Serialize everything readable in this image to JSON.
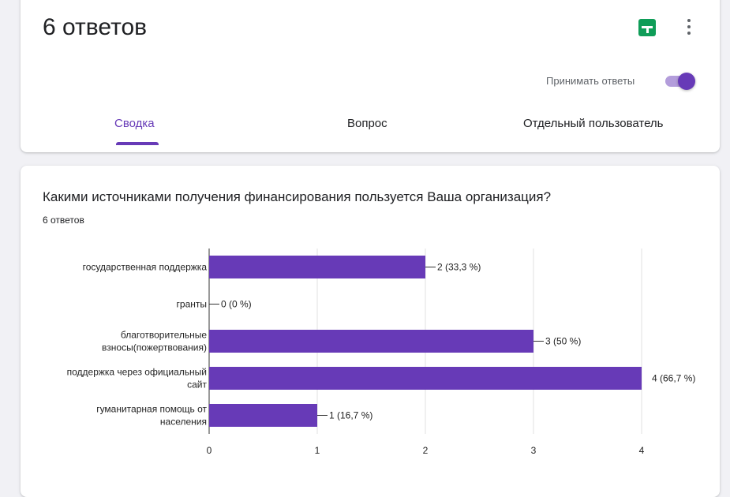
{
  "header": {
    "title": "6 ответов",
    "accept_label": "Принимать ответы",
    "accepting": true,
    "tabs": [
      {
        "label": "Сводка",
        "active": true
      },
      {
        "label": "Вопрос",
        "active": false
      },
      {
        "label": "Отдельный пользователь",
        "active": false
      }
    ]
  },
  "question": {
    "title": "Какими источниками получения финансирования пользуется Ваша организация?",
    "answer_count": "6 ответов"
  },
  "colors": {
    "accent": "#673ab7",
    "bar": "#673ab7",
    "sheets": "#0f9d58"
  },
  "chart_data": {
    "type": "bar",
    "orientation": "horizontal",
    "categories": [
      [
        "государственная поддержка"
      ],
      [
        "гранты"
      ],
      [
        "благотворительные",
        "взносы(пожертвования)"
      ],
      [
        "поддержка через официальный",
        "сайт"
      ],
      [
        "гуманитарная помощь от",
        "населения"
      ]
    ],
    "values": [
      2,
      0,
      3,
      4,
      1
    ],
    "labels": [
      "2 (33,3 %)",
      "0 (0 %)",
      "3 (50 %)",
      "4 (66,7 %)",
      "1 (16,7 %)"
    ],
    "xticks": [
      "0",
      "1",
      "2",
      "3",
      "4"
    ],
    "xlim": [
      0,
      4
    ],
    "grid": true
  }
}
